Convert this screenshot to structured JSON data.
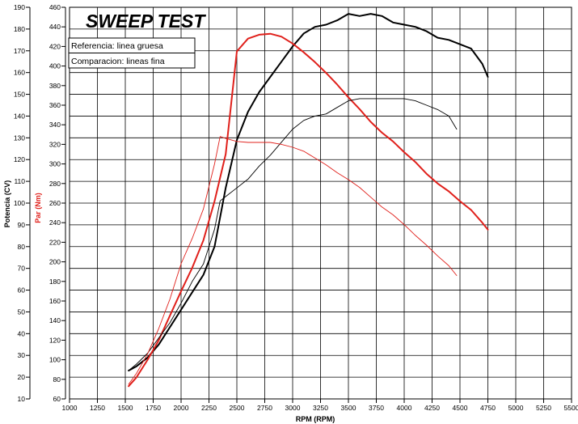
{
  "chart_data": {
    "type": "line",
    "title": "SWEEP TEST",
    "xlabel": "RPM (RPM)",
    "ylabel_power": "Potencia (CV)",
    "ylabel_torque": "Par (Nm)",
    "xlim": [
      1000,
      5500
    ],
    "ylim_power": [
      10,
      190
    ],
    "ylim_torque": [
      60,
      460
    ],
    "x_ticks": [
      1000,
      1250,
      1500,
      1750,
      2000,
      2250,
      2500,
      2750,
      3000,
      3250,
      3500,
      3750,
      4000,
      4250,
      4500,
      4750,
      5000,
      5250,
      5500
    ],
    "power_ticks": [
      10,
      20,
      30,
      40,
      50,
      60,
      70,
      80,
      90,
      100,
      110,
      120,
      130,
      140,
      150,
      160,
      170,
      180,
      190
    ],
    "torque_ticks": [
      60,
      80,
      100,
      120,
      140,
      160,
      180,
      200,
      220,
      240,
      260,
      280,
      300,
      320,
      340,
      360,
      380,
      400,
      420,
      440,
      460
    ],
    "grid": true,
    "legend": {
      "reference": "Referencia: linea gruesa",
      "comparison": "Comparacion: lineas fina"
    },
    "colors": {
      "power": "#000000",
      "torque": "#e0201b",
      "grid": "#000000"
    },
    "series": [
      {
        "name": "Potencia referencia",
        "axis": "power",
        "color": "#000000",
        "width": 2,
        "x": [
          1530,
          1600,
          1700,
          1800,
          1900,
          2000,
          2100,
          2200,
          2300,
          2400,
          2500,
          2600,
          2700,
          2800,
          2900,
          3000,
          3100,
          3200,
          3300,
          3400,
          3500,
          3600,
          3700,
          3800,
          3900,
          4000,
          4100,
          4200,
          4300,
          4400,
          4500,
          4600,
          4700,
          4750
        ],
        "values": [
          23,
          25,
          29,
          35,
          43,
          51,
          59,
          67,
          80,
          107,
          129,
          142,
          151,
          158,
          165,
          172,
          178,
          181,
          182,
          184,
          187,
          186,
          187,
          186,
          183,
          182,
          181,
          179,
          176,
          175,
          173,
          171,
          164,
          158
        ]
      },
      {
        "name": "Par referencia",
        "axis": "torque",
        "color": "#e0201b",
        "width": 2,
        "x": [
          1530,
          1600,
          1700,
          1800,
          1900,
          2000,
          2100,
          2200,
          2300,
          2400,
          2500,
          2600,
          2700,
          2800,
          2900,
          3000,
          3100,
          3200,
          3300,
          3400,
          3500,
          3600,
          3700,
          3800,
          3900,
          4000,
          4100,
          4200,
          4300,
          4400,
          4500,
          4600,
          4700,
          4750
        ],
        "values": [
          73,
          82,
          100,
          120,
          145,
          170,
          194,
          222,
          262,
          310,
          415,
          428,
          432,
          433,
          430,
          423,
          414,
          404,
          393,
          381,
          368,
          356,
          343,
          332,
          323,
          312,
          302,
          290,
          280,
          272,
          262,
          253,
          240,
          233
        ]
      },
      {
        "name": "Potencia comparacion",
        "axis": "power",
        "color": "#000000",
        "width": 0.9,
        "x": [
          1530,
          1600,
          1700,
          1800,
          1900,
          2000,
          2100,
          2200,
          2300,
          2350,
          2400,
          2500,
          2600,
          2700,
          2800,
          2900,
          3000,
          3100,
          3200,
          3300,
          3400,
          3500,
          3600,
          3700,
          3800,
          3900,
          4000,
          4100,
          4200,
          4300,
          4400,
          4470
        ],
        "values": [
          23,
          26,
          31,
          38,
          45,
          54,
          64,
          72,
          88,
          101,
          103,
          107,
          111,
          117,
          122,
          128,
          134,
          138,
          140,
          141,
          144,
          147,
          148,
          148,
          148,
          148,
          148,
          147,
          145,
          143,
          140,
          134
        ]
      },
      {
        "name": "Par comparacion",
        "axis": "torque",
        "color": "#e0201b",
        "width": 0.9,
        "x": [
          1530,
          1600,
          1700,
          1800,
          1900,
          2000,
          2100,
          2200,
          2300,
          2350,
          2400,
          2500,
          2600,
          2700,
          2800,
          2900,
          3000,
          3100,
          3200,
          3300,
          3400,
          3500,
          3600,
          3700,
          3800,
          3900,
          4000,
          4100,
          4200,
          4300,
          4400,
          4470
        ],
        "values": [
          75,
          86,
          106,
          132,
          162,
          198,
          224,
          254,
          300,
          328,
          326,
          323,
          322,
          322,
          322,
          320,
          317,
          313,
          306,
          299,
          291,
          284,
          276,
          266,
          256,
          248,
          238,
          227,
          217,
          206,
          196,
          186
        ]
      }
    ]
  }
}
